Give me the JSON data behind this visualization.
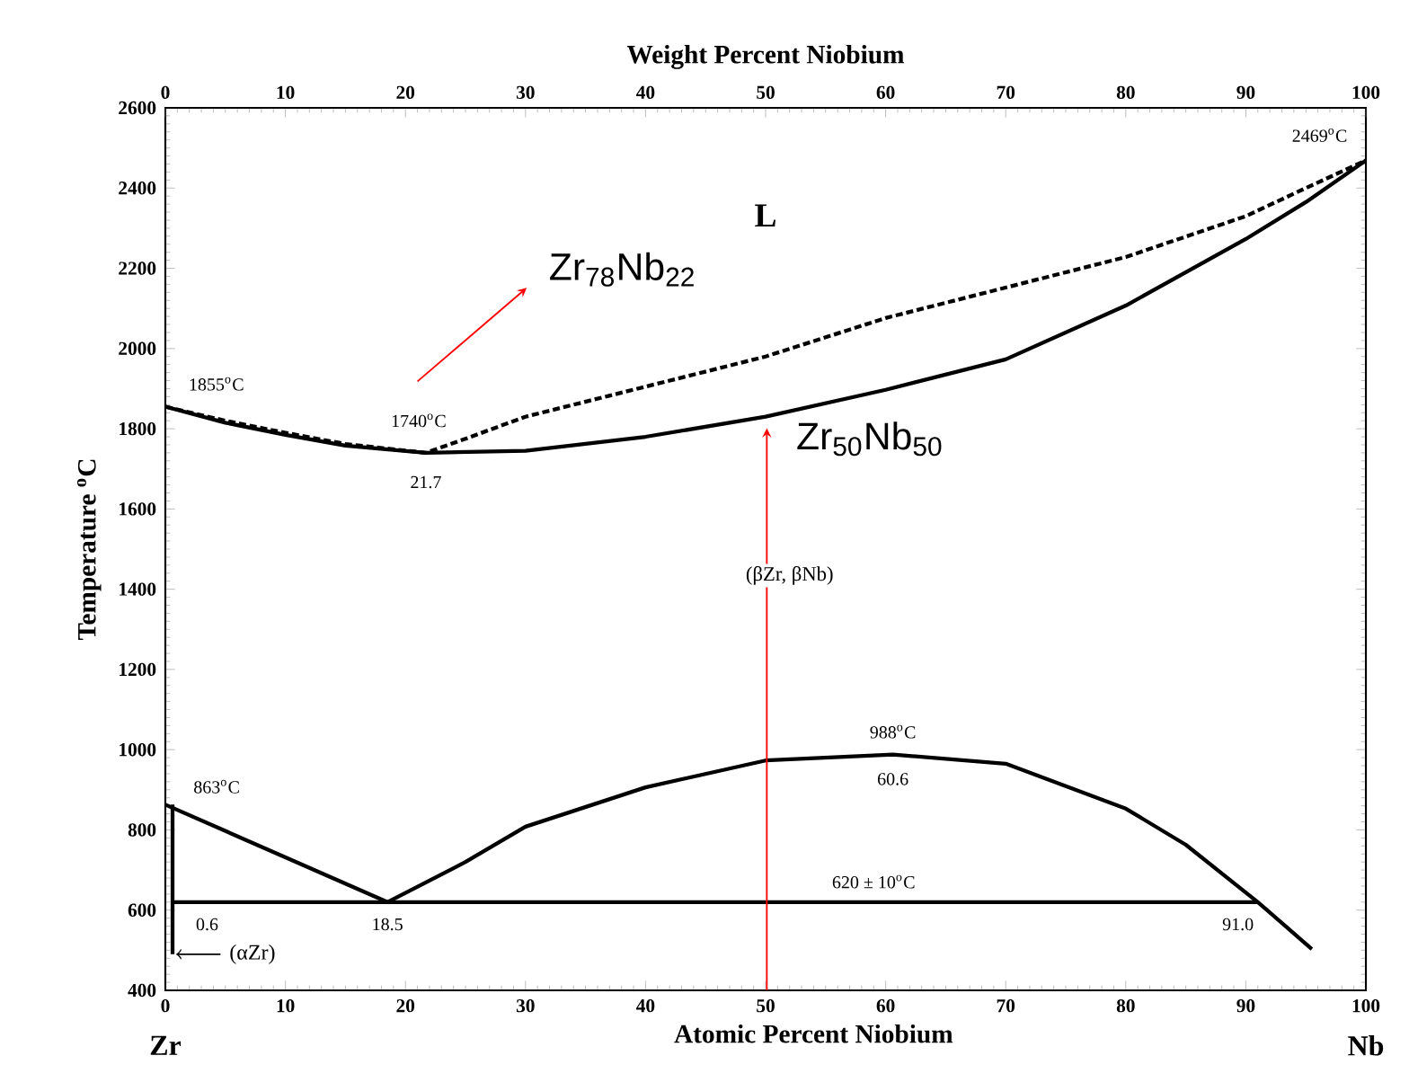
{
  "chart_data": {
    "type": "line",
    "xlabel": "Atomic Percent Niobium",
    "ylabel": "Temperature $^{o}$C",
    "x2label": "Weight Percent Niobium",
    "xlim": [
      0,
      100
    ],
    "ylim": [
      400,
      2600
    ],
    "xticks": [
      0,
      10,
      20,
      30,
      40,
      50,
      60,
      70,
      80,
      90,
      100
    ],
    "yticks": [
      400,
      600,
      800,
      1000,
      1200,
      1400,
      1600,
      1800,
      2000,
      2200,
      2400,
      2600
    ],
    "x2lim": [
      0,
      100
    ],
    "x2ticks": [
      0,
      10,
      20,
      30,
      40,
      50,
      60,
      70,
      80,
      90,
      100
    ],
    "series": [
      {
        "color": "#000000",
        "line_style": "dashed",
        "x": [
          0,
          5,
          10,
          15,
          21.7,
          25,
          30,
          40,
          50,
          60,
          70,
          80,
          90,
          95,
          100
        ],
        "values": [
          1855,
          1820,
          1790,
          1762,
          1740,
          1775,
          1830,
          1905,
          1980,
          2076,
          2152,
          2228,
          2330,
          2400,
          2469
        ]
      },
      {
        "color": "#000000",
        "line_style": "solid",
        "x": [
          0,
          5,
          10,
          15,
          21.7,
          30,
          40,
          50,
          60,
          70,
          80,
          90,
          95,
          100
        ],
        "values": [
          1855,
          1815,
          1785,
          1758,
          1740,
          1745,
          1780,
          1830,
          1897,
          1973,
          2107,
          2273,
          2365,
          2469
        ]
      },
      {
        "color": "#000000",
        "line_style": "solid",
        "x": [
          0,
          18.5
        ],
        "values": [
          863,
          620
        ]
      },
      {
        "color": "#000000",
        "line_style": "solid",
        "x": [
          18.5,
          25,
          30,
          40,
          50,
          60.6,
          70,
          80,
          85,
          91,
          95.5
        ],
        "values": [
          620,
          720,
          808,
          906,
          973,
          988,
          965,
          853,
          763,
          620,
          503
        ]
      },
      {
        "color": "#000000",
        "line_style": "solid",
        "x": [
          0.6,
          91
        ],
        "values": [
          620,
          620
        ]
      },
      {
        "color": "#000000",
        "line_style": "solid",
        "x": [
          0.6,
          0.6
        ],
        "values": [
          863,
          490
        ]
      }
    ],
    "annotations": [
      "L",
      "(βZr, βNb)",
      {
        "text": "1855$^{o}$C",
        "x": 0,
        "y": 1855
      },
      {
        "text": "1740$^{o}$C",
        "x": 21.7,
        "y": 1740
      },
      {
        "text": "21.7",
        "x": 21.7,
        "y": 1740
      },
      {
        "text": "2469$^{o}$C",
        "x": 100,
        "y": 2469
      },
      {
        "text": "863$^{o}$C",
        "x": 0,
        "y": 863
      },
      {
        "text": "988$^{o}$C",
        "x": 60.6,
        "y": 988
      },
      {
        "text": "60.6",
        "x": 60.6,
        "y": 988
      },
      {
        "text": "620 ± 10$^{o}$C",
        "x": 59,
        "y": 620
      },
      {
        "text": "0.6",
        "x": 0.6,
        "y": 620
      },
      {
        "text": "18.5",
        "x": 18.5,
        "y": 620
      },
      {
        "text": "91.0",
        "x": 91,
        "y": 620
      },
      {
        "text": "(αZr)",
        "x": 0.6,
        "y": 490
      },
      "Zr$_{78}$Nb$_{22}$",
      "Zr$_{50}$Nb$_{50}$",
      "Zr",
      "Nb"
    ]
  }
}
